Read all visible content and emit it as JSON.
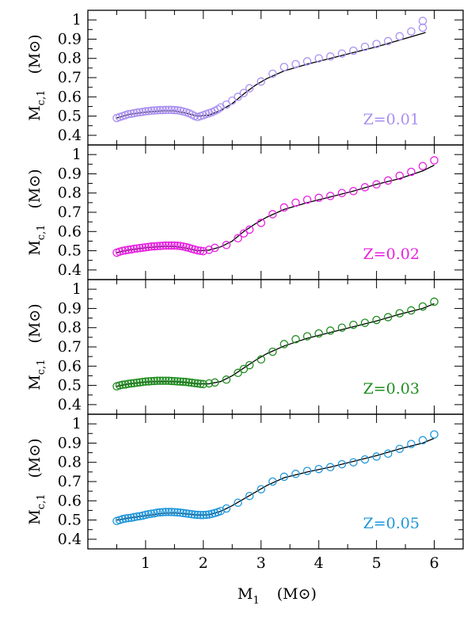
{
  "chart_data": {
    "type": "scatter",
    "xlabel": {
      "main": "M",
      "sub": "1",
      "unit": "(M⊙)"
    },
    "ylabel": {
      "main": "M",
      "sub": "c,1",
      "unit": "(M⊙)"
    },
    "xlim": [
      0.0,
      6.5
    ],
    "ylim": [
      0.35,
      1.05
    ],
    "x_ticks": [
      1,
      2,
      3,
      4,
      5,
      6
    ],
    "y_ticks": [
      0.4,
      0.5,
      0.6,
      0.7,
      0.8,
      0.9,
      1
    ],
    "y_tick_labels": [
      "0.4",
      "0.5",
      "0.6",
      "0.7",
      "0.8",
      "0.9",
      "1"
    ],
    "panels": [
      {
        "label": "Z=0.01",
        "color": "#a98ff0",
        "points": [
          [
            0.5,
            0.49
          ],
          [
            0.55,
            0.495
          ],
          [
            0.6,
            0.5
          ],
          [
            0.65,
            0.505
          ],
          [
            0.7,
            0.51
          ],
          [
            0.75,
            0.512
          ],
          [
            0.8,
            0.515
          ],
          [
            0.85,
            0.518
          ],
          [
            0.9,
            0.52
          ],
          [
            0.95,
            0.522
          ],
          [
            1.0,
            0.525
          ],
          [
            1.05,
            0.526
          ],
          [
            1.1,
            0.528
          ],
          [
            1.15,
            0.529
          ],
          [
            1.2,
            0.53
          ],
          [
            1.25,
            0.531
          ],
          [
            1.3,
            0.531
          ],
          [
            1.35,
            0.532
          ],
          [
            1.4,
            0.532
          ],
          [
            1.45,
            0.532
          ],
          [
            1.5,
            0.531
          ],
          [
            1.55,
            0.53
          ],
          [
            1.6,
            0.528
          ],
          [
            1.65,
            0.524
          ],
          [
            1.7,
            0.52
          ],
          [
            1.75,
            0.515
          ],
          [
            1.8,
            0.508
          ],
          [
            1.85,
            0.5
          ],
          [
            1.9,
            0.495
          ],
          [
            1.95,
            0.5
          ],
          [
            2.0,
            0.505
          ],
          [
            2.05,
            0.51
          ],
          [
            2.1,
            0.515
          ],
          [
            2.15,
            0.52
          ],
          [
            2.2,
            0.527
          ],
          [
            2.25,
            0.535
          ],
          [
            2.3,
            0.545
          ],
          [
            2.4,
            0.56
          ],
          [
            2.5,
            0.58
          ],
          [
            2.6,
            0.6
          ],
          [
            2.7,
            0.62
          ],
          [
            2.8,
            0.645
          ],
          [
            3.0,
            0.68
          ],
          [
            3.2,
            0.72
          ],
          [
            3.4,
            0.755
          ],
          [
            3.6,
            0.77
          ],
          [
            3.8,
            0.785
          ],
          [
            4.0,
            0.8
          ],
          [
            4.2,
            0.81
          ],
          [
            4.4,
            0.825
          ],
          [
            4.6,
            0.84
          ],
          [
            4.8,
            0.86
          ],
          [
            5.0,
            0.875
          ],
          [
            5.2,
            0.89
          ],
          [
            5.4,
            0.915
          ],
          [
            5.6,
            0.94
          ],
          [
            5.8,
            0.96
          ],
          [
            5.8,
            0.995
          ]
        ],
        "fit": [
          [
            0.5,
            0.49
          ],
          [
            0.7,
            0.508
          ],
          [
            1.0,
            0.52
          ],
          [
            1.3,
            0.527
          ],
          [
            1.5,
            0.527
          ],
          [
            1.7,
            0.515
          ],
          [
            1.9,
            0.5
          ],
          [
            2.1,
            0.505
          ],
          [
            2.3,
            0.53
          ],
          [
            2.5,
            0.565
          ],
          [
            2.7,
            0.615
          ],
          [
            2.9,
            0.66
          ],
          [
            3.1,
            0.695
          ],
          [
            3.4,
            0.735
          ],
          [
            3.8,
            0.77
          ],
          [
            4.2,
            0.8
          ],
          [
            4.6,
            0.83
          ],
          [
            5.0,
            0.86
          ],
          [
            5.4,
            0.895
          ],
          [
            5.8,
            0.93
          ],
          [
            5.85,
            0.935
          ]
        ]
      },
      {
        "label": "Z=0.02",
        "color": "#e81ee0",
        "points": [
          [
            0.5,
            0.49
          ],
          [
            0.55,
            0.495
          ],
          [
            0.6,
            0.5
          ],
          [
            0.65,
            0.502
          ],
          [
            0.7,
            0.505
          ],
          [
            0.75,
            0.507
          ],
          [
            0.8,
            0.51
          ],
          [
            0.85,
            0.512
          ],
          [
            0.9,
            0.514
          ],
          [
            0.95,
            0.516
          ],
          [
            1.0,
            0.518
          ],
          [
            1.05,
            0.52
          ],
          [
            1.1,
            0.522
          ],
          [
            1.15,
            0.523
          ],
          [
            1.2,
            0.524
          ],
          [
            1.25,
            0.525
          ],
          [
            1.3,
            0.526
          ],
          [
            1.35,
            0.527
          ],
          [
            1.4,
            0.527
          ],
          [
            1.45,
            0.527
          ],
          [
            1.5,
            0.527
          ],
          [
            1.55,
            0.526
          ],
          [
            1.6,
            0.525
          ],
          [
            1.65,
            0.522
          ],
          [
            1.7,
            0.519
          ],
          [
            1.75,
            0.515
          ],
          [
            1.8,
            0.51
          ],
          [
            1.85,
            0.506
          ],
          [
            1.9,
            0.502
          ],
          [
            1.95,
            0.5
          ],
          [
            2.0,
            0.498
          ],
          [
            2.1,
            0.505
          ],
          [
            2.2,
            0.515
          ],
          [
            2.4,
            0.53
          ],
          [
            2.6,
            0.565
          ],
          [
            2.7,
            0.59
          ],
          [
            2.8,
            0.61
          ],
          [
            3.0,
            0.645
          ],
          [
            3.2,
            0.69
          ],
          [
            3.4,
            0.725
          ],
          [
            3.6,
            0.75
          ],
          [
            3.8,
            0.765
          ],
          [
            4.0,
            0.775
          ],
          [
            4.2,
            0.785
          ],
          [
            4.4,
            0.8
          ],
          [
            4.6,
            0.81
          ],
          [
            4.8,
            0.83
          ],
          [
            5.0,
            0.845
          ],
          [
            5.2,
            0.865
          ],
          [
            5.4,
            0.89
          ],
          [
            5.6,
            0.91
          ],
          [
            5.8,
            0.94
          ],
          [
            6.0,
            0.97
          ]
        ],
        "fit": [
          [
            0.5,
            0.49
          ],
          [
            0.7,
            0.503
          ],
          [
            1.0,
            0.515
          ],
          [
            1.3,
            0.522
          ],
          [
            1.5,
            0.522
          ],
          [
            1.7,
            0.513
          ],
          [
            1.9,
            0.5
          ],
          [
            2.1,
            0.503
          ],
          [
            2.3,
            0.52
          ],
          [
            2.5,
            0.55
          ],
          [
            2.7,
            0.6
          ],
          [
            2.9,
            0.64
          ],
          [
            3.1,
            0.675
          ],
          [
            3.4,
            0.715
          ],
          [
            3.8,
            0.75
          ],
          [
            4.2,
            0.78
          ],
          [
            4.6,
            0.81
          ],
          [
            5.0,
            0.845
          ],
          [
            5.4,
            0.875
          ],
          [
            5.8,
            0.915
          ],
          [
            6.0,
            0.945
          ]
        ]
      },
      {
        "label": "Z=0.03",
        "color": "#1e8c1e",
        "points": [
          [
            0.5,
            0.495
          ],
          [
            0.55,
            0.5
          ],
          [
            0.6,
            0.503
          ],
          [
            0.65,
            0.505
          ],
          [
            0.7,
            0.508
          ],
          [
            0.75,
            0.51
          ],
          [
            0.8,
            0.512
          ],
          [
            0.85,
            0.514
          ],
          [
            0.9,
            0.516
          ],
          [
            0.95,
            0.518
          ],
          [
            1.0,
            0.52
          ],
          [
            1.05,
            0.521
          ],
          [
            1.1,
            0.522
          ],
          [
            1.15,
            0.523
          ],
          [
            1.2,
            0.524
          ],
          [
            1.25,
            0.524
          ],
          [
            1.3,
            0.524
          ],
          [
            1.35,
            0.524
          ],
          [
            1.4,
            0.524
          ],
          [
            1.45,
            0.523
          ],
          [
            1.5,
            0.522
          ],
          [
            1.55,
            0.521
          ],
          [
            1.6,
            0.52
          ],
          [
            1.65,
            0.519
          ],
          [
            1.7,
            0.518
          ],
          [
            1.75,
            0.516
          ],
          [
            1.8,
            0.514
          ],
          [
            1.85,
            0.512
          ],
          [
            1.9,
            0.51
          ],
          [
            1.95,
            0.508
          ],
          [
            2.0,
            0.507
          ],
          [
            2.1,
            0.51
          ],
          [
            2.2,
            0.515
          ],
          [
            2.4,
            0.53
          ],
          [
            2.6,
            0.565
          ],
          [
            2.7,
            0.585
          ],
          [
            2.8,
            0.605
          ],
          [
            3.0,
            0.635
          ],
          [
            3.2,
            0.675
          ],
          [
            3.4,
            0.715
          ],
          [
            3.6,
            0.74
          ],
          [
            3.8,
            0.755
          ],
          [
            4.0,
            0.77
          ],
          [
            4.2,
            0.785
          ],
          [
            4.4,
            0.8
          ],
          [
            4.6,
            0.815
          ],
          [
            4.8,
            0.825
          ],
          [
            5.0,
            0.84
          ],
          [
            5.2,
            0.855
          ],
          [
            5.4,
            0.875
          ],
          [
            5.6,
            0.89
          ],
          [
            5.8,
            0.91
          ],
          [
            6.0,
            0.935
          ]
        ],
        "fit": [
          [
            0.5,
            0.495
          ],
          [
            0.7,
            0.507
          ],
          [
            1.0,
            0.517
          ],
          [
            1.3,
            0.52
          ],
          [
            1.6,
            0.518
          ],
          [
            1.9,
            0.508
          ],
          [
            2.1,
            0.508
          ],
          [
            2.3,
            0.52
          ],
          [
            2.5,
            0.55
          ],
          [
            2.7,
            0.59
          ],
          [
            2.9,
            0.63
          ],
          [
            3.1,
            0.665
          ],
          [
            3.4,
            0.705
          ],
          [
            3.8,
            0.745
          ],
          [
            4.2,
            0.775
          ],
          [
            4.6,
            0.805
          ],
          [
            5.0,
            0.835
          ],
          [
            5.4,
            0.87
          ],
          [
            5.8,
            0.9
          ],
          [
            6.0,
            0.925
          ]
        ]
      },
      {
        "label": "Z=0.05",
        "color": "#1e96dc",
        "points": [
          [
            0.5,
            0.495
          ],
          [
            0.55,
            0.5
          ],
          [
            0.6,
            0.505
          ],
          [
            0.65,
            0.508
          ],
          [
            0.7,
            0.51
          ],
          [
            0.75,
            0.512
          ],
          [
            0.8,
            0.515
          ],
          [
            0.85,
            0.518
          ],
          [
            0.9,
            0.52
          ],
          [
            0.95,
            0.523
          ],
          [
            1.0,
            0.527
          ],
          [
            1.05,
            0.53
          ],
          [
            1.1,
            0.533
          ],
          [
            1.15,
            0.535
          ],
          [
            1.2,
            0.538
          ],
          [
            1.25,
            0.54
          ],
          [
            1.3,
            0.541
          ],
          [
            1.35,
            0.542
          ],
          [
            1.4,
            0.542
          ],
          [
            1.45,
            0.542
          ],
          [
            1.5,
            0.541
          ],
          [
            1.55,
            0.54
          ],
          [
            1.6,
            0.538
          ],
          [
            1.65,
            0.536
          ],
          [
            1.7,
            0.534
          ],
          [
            1.75,
            0.532
          ],
          [
            1.8,
            0.53
          ],
          [
            1.85,
            0.528
          ],
          [
            1.9,
            0.527
          ],
          [
            1.95,
            0.526
          ],
          [
            2.0,
            0.526
          ],
          [
            2.05,
            0.527
          ],
          [
            2.1,
            0.529
          ],
          [
            2.15,
            0.532
          ],
          [
            2.2,
            0.536
          ],
          [
            2.25,
            0.541
          ],
          [
            2.3,
            0.547
          ],
          [
            2.4,
            0.56
          ],
          [
            2.6,
            0.59
          ],
          [
            2.8,
            0.625
          ],
          [
            3.0,
            0.66
          ],
          [
            3.2,
            0.7
          ],
          [
            3.4,
            0.725
          ],
          [
            3.6,
            0.74
          ],
          [
            3.8,
            0.755
          ],
          [
            4.0,
            0.765
          ],
          [
            4.2,
            0.775
          ],
          [
            4.4,
            0.79
          ],
          [
            4.6,
            0.8
          ],
          [
            4.8,
            0.815
          ],
          [
            5.0,
            0.83
          ],
          [
            5.2,
            0.845
          ],
          [
            5.4,
            0.87
          ],
          [
            5.6,
            0.895
          ],
          [
            5.8,
            0.915
          ],
          [
            6.0,
            0.945
          ]
        ],
        "fit": [
          [
            0.5,
            0.5
          ],
          [
            0.7,
            0.51
          ],
          [
            1.0,
            0.522
          ],
          [
            1.3,
            0.535
          ],
          [
            1.5,
            0.537
          ],
          [
            1.7,
            0.532
          ],
          [
            1.9,
            0.526
          ],
          [
            2.1,
            0.527
          ],
          [
            2.3,
            0.545
          ],
          [
            2.5,
            0.575
          ],
          [
            2.7,
            0.61
          ],
          [
            2.9,
            0.645
          ],
          [
            3.1,
            0.68
          ],
          [
            3.4,
            0.72
          ],
          [
            3.8,
            0.75
          ],
          [
            4.2,
            0.775
          ],
          [
            4.6,
            0.805
          ],
          [
            5.0,
            0.835
          ],
          [
            5.4,
            0.87
          ],
          [
            5.8,
            0.9
          ],
          [
            6.0,
            0.925
          ]
        ]
      }
    ]
  }
}
